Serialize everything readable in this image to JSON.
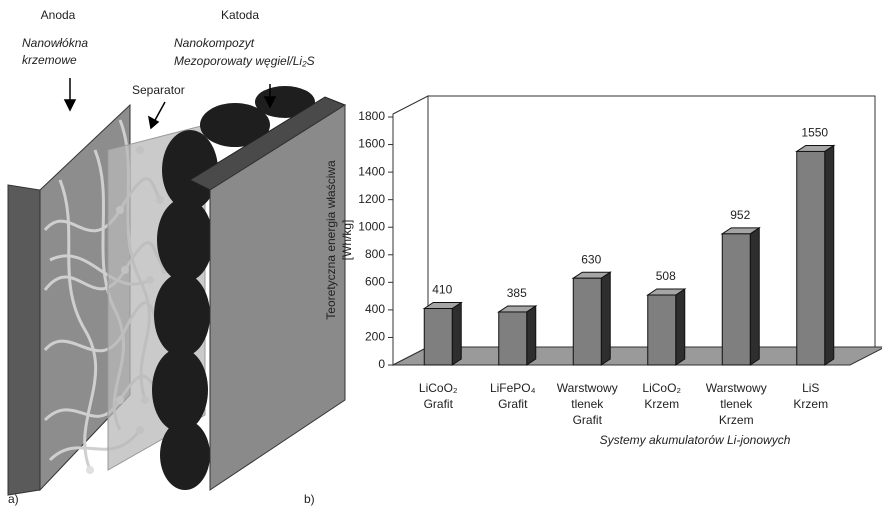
{
  "diagram": {
    "panel_label": "a)",
    "anode": "Anoda",
    "anode_material": [
      "Nanowłókna",
      "krzemowe"
    ],
    "separator": "Separator",
    "cathode": "Katoda",
    "cathode_material": [
      "Nanokompozyt",
      "Mezoporowaty węgiel/Li₂S"
    ]
  },
  "chart_data": {
    "type": "bar",
    "panel_label": "b)",
    "y_label": [
      "Teoretyczna energia właściwa",
      "[Wh/kg]"
    ],
    "x_label": "Systemy akumulatorów Li-jonowych",
    "categories": [
      [
        "LiCoO₂",
        "Grafit"
      ],
      [
        "LiFePO₄",
        "Grafit"
      ],
      [
        "Warstwowy",
        "tlenek",
        "Grafit"
      ],
      [
        "LiCoO₂",
        "Krzem"
      ],
      [
        "Warstwowy",
        "tlenek",
        "Krzem"
      ],
      [
        "LiS",
        "Krzem"
      ]
    ],
    "values": [
      410,
      385,
      630,
      508,
      952,
      1550
    ],
    "color": "#7f7f7f",
    "ylim": [
      0,
      1800
    ],
    "yticks": [
      0,
      200,
      400,
      600,
      800,
      1000,
      1200,
      1400,
      1600,
      1800
    ]
  }
}
